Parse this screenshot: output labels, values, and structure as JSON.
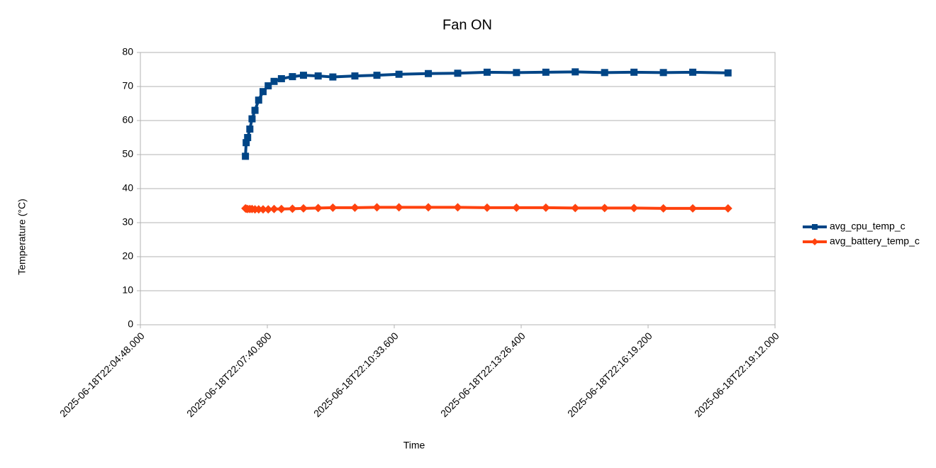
{
  "chart_data": {
    "type": "line",
    "title": "Fan ON",
    "x_label": "Time",
    "y_label": "Temperature (°C)",
    "x": [
      "2025-06-18T22:07:11.000",
      "2025-06-18T22:07:12.000",
      "2025-06-18T22:07:14.000",
      "2025-06-18T22:07:17.000",
      "2025-06-18T22:07:20.000",
      "2025-06-18T22:07:24.000",
      "2025-06-18T22:07:29.000",
      "2025-06-18T22:07:35.000",
      "2025-06-18T22:07:42.000",
      "2025-06-18T22:07:50.000",
      "2025-06-18T22:08:00.000",
      "2025-06-18T22:08:15.000",
      "2025-06-18T22:08:30.000",
      "2025-06-18T22:08:50.000",
      "2025-06-18T22:09:10.000",
      "2025-06-18T22:09:40.000",
      "2025-06-18T22:10:10.000",
      "2025-06-18T22:10:40.000",
      "2025-06-18T22:11:20.000",
      "2025-06-18T22:12:00.000",
      "2025-06-18T22:12:40.000",
      "2025-06-18T22:13:20.000",
      "2025-06-18T22:14:00.000",
      "2025-06-18T22:14:40.000",
      "2025-06-18T22:15:20.000",
      "2025-06-18T22:16:00.000",
      "2025-06-18T22:16:40.000",
      "2025-06-18T22:17:20.000",
      "2025-06-18T22:18:08.000"
    ],
    "series": [
      {
        "name": "avg_cpu_temp_c",
        "color": "#004586",
        "marker": "square",
        "values": [
          49.5,
          53.5,
          55,
          57.5,
          60.5,
          63,
          66,
          68.5,
          70.2,
          71.5,
          72.3,
          72.9,
          73.3,
          73.1,
          72.8,
          73.1,
          73.3,
          73.6,
          73.8,
          73.9,
          74.2,
          74.1,
          74.2,
          74.3,
          74.1,
          74.2,
          74.1,
          74.2,
          74.0
        ]
      },
      {
        "name": "avg_battery_temp_c",
        "color": "#ff420e",
        "marker": "diamond",
        "values": [
          34.2,
          34.1,
          34.0,
          34.0,
          34.0,
          33.9,
          33.9,
          33.9,
          33.9,
          34.0,
          34.0,
          34.1,
          34.2,
          34.3,
          34.4,
          34.4,
          34.5,
          34.5,
          34.5,
          34.5,
          34.4,
          34.4,
          34.4,
          34.3,
          34.3,
          34.3,
          34.2,
          34.2,
          34.2
        ]
      }
    ],
    "xlim": [
      "2025-06-18T22:04:48.000",
      "2025-06-18T22:19:12.000"
    ],
    "xticks": [
      "2025-06-18T22:04:48.000",
      "2025-06-18T22:07:40.800",
      "2025-06-18T22:10:33.600",
      "2025-06-18T22:13:26.400",
      "2025-06-18T22:16:19.200",
      "2025-06-18T22:19:12.000"
    ],
    "ylim": [
      0,
      80
    ],
    "yticks": [
      0,
      10,
      20,
      30,
      40,
      50,
      60,
      70,
      80
    ],
    "grid": true,
    "legend": "right"
  }
}
